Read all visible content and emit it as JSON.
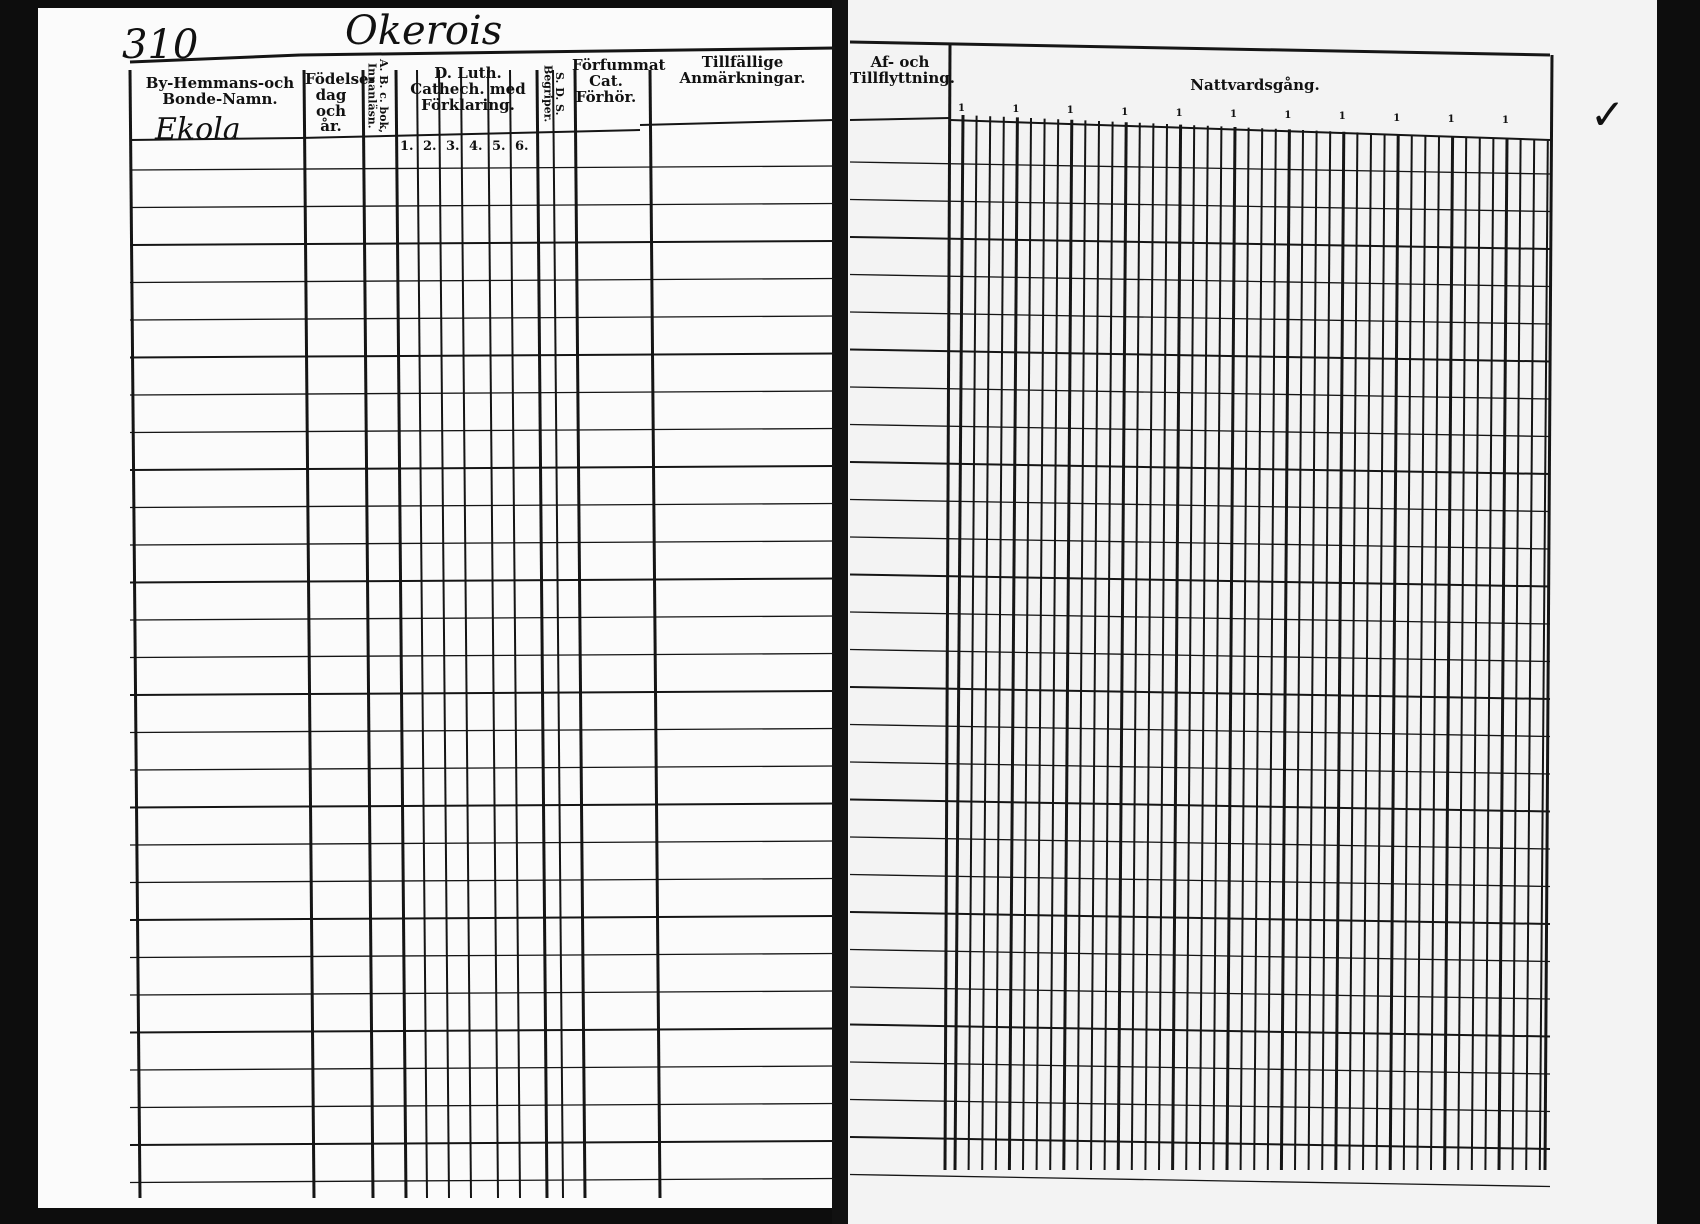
{
  "page_number": "310",
  "parish_name": "Okerois",
  "village_entry": "Ekola",
  "headers": {
    "farm_name": "By-Hemmans-och Bonde-Namn.",
    "birth": "Födelse-dag och år.",
    "abc_book": "A. B. c. bok, Innanläsn.",
    "catechism": "D. Luth. Cathech. med Förklaring.",
    "catechism_columns": [
      "1.",
      "2.",
      "3.",
      "4.",
      "5.",
      "6."
    ],
    "begrip": "S. D. S. Begriper.",
    "missed_exam": "Förfummat Cat. Förhör.",
    "remarks": "Tillfällige Anmärkningar.",
    "moving": "Af- och Tillflyttning.",
    "communion": "Nattvardsgång.",
    "communion_markers": [
      "1",
      "1",
      "1",
      "1",
      "1",
      "1",
      "1",
      "1",
      "1",
      "1",
      "1"
    ]
  },
  "margin_mark": "✓"
}
